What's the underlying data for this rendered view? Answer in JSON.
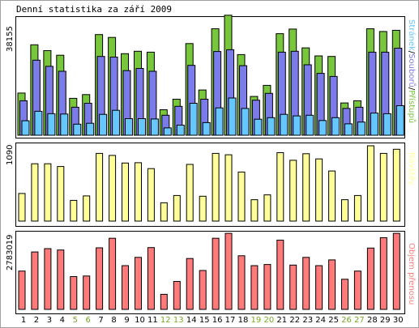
{
  "title": "Denní statistika za září 2009",
  "colors": {
    "hits": "#77c63b",
    "files": "#7b7bea",
    "pages": "#66c7ff",
    "visits": "#ffff99",
    "kbytes": "#ff7b7b",
    "weekday_label": "#000000",
    "weekend_label": "#77aa22",
    "border": "#000000"
  },
  "legend": {
    "pages": "Stránek",
    "sep1": "/",
    "files": "Souborů",
    "sep2": "/",
    "hits": "Přístupů",
    "visits": "Návštěv",
    "kbytes": "Objem přenosu"
  },
  "chart_data": [
    {
      "type": "bar",
      "name": "hits-files-pages",
      "ymax_label": "38155",
      "ylim": [
        0,
        38155
      ],
      "categories": [
        "1",
        "2",
        "3",
        "4",
        "5",
        "6",
        "7",
        "8",
        "9",
        "10",
        "11",
        "12",
        "13",
        "14",
        "15",
        "16",
        "17",
        "18",
        "19",
        "20",
        "21",
        "22",
        "23",
        "24",
        "25",
        "26",
        "27",
        "28",
        "29",
        "30"
      ],
      "weekend": [
        false,
        false,
        false,
        false,
        true,
        true,
        false,
        false,
        false,
        false,
        false,
        true,
        true,
        false,
        false,
        false,
        false,
        false,
        true,
        true,
        false,
        false,
        false,
        false,
        false,
        true,
        true,
        false,
        false,
        false
      ],
      "series": [
        {
          "key": "hits",
          "name": "Přístupů",
          "values": [
            13700,
            29400,
            27500,
            26000,
            12000,
            13200,
            32700,
            31800,
            26500,
            27300,
            27000,
            8300,
            11700,
            29800,
            14700,
            34600,
            39000,
            26200,
            12600,
            16200,
            33000,
            34500,
            28400,
            25800,
            25600,
            10500,
            11200,
            34600,
            33700,
            34100
          ]
        },
        {
          "key": "files",
          "name": "Souborů",
          "values": [
            11200,
            24400,
            22400,
            20800,
            9100,
            10400,
            25600,
            25400,
            21000,
            21700,
            20800,
            6500,
            9400,
            22700,
            11700,
            27200,
            27800,
            22600,
            11400,
            13600,
            27000,
            27300,
            22900,
            20100,
            19100,
            8700,
            9100,
            27000,
            27000,
            28300
          ]
        },
        {
          "key": "pages",
          "name": "Stránek",
          "values": [
            4700,
            7800,
            7000,
            6900,
            3600,
            3900,
            6800,
            8100,
            5400,
            5400,
            5300,
            2400,
            3300,
            10400,
            4100,
            8900,
            12100,
            8700,
            5200,
            5700,
            6800,
            6300,
            6500,
            4800,
            5700,
            3700,
            4300,
            7200,
            7000,
            9600
          ]
        }
      ]
    },
    {
      "type": "bar",
      "name": "visits",
      "ymax_label": "1090",
      "ylim": [
        0,
        1090
      ],
      "categories": [
        "1",
        "2",
        "3",
        "4",
        "5",
        "6",
        "7",
        "8",
        "9",
        "10",
        "11",
        "12",
        "13",
        "14",
        "15",
        "16",
        "17",
        "18",
        "19",
        "20",
        "21",
        "22",
        "23",
        "24",
        "25",
        "26",
        "27",
        "28",
        "29",
        "30"
      ],
      "series": [
        {
          "key": "visits",
          "name": "Návštěv",
          "values": [
            400,
            830,
            830,
            790,
            300,
            365,
            980,
            950,
            840,
            845,
            760,
            265,
            370,
            820,
            360,
            980,
            960,
            710,
            310,
            380,
            990,
            880,
            975,
            900,
            725,
            310,
            370,
            1090,
            980,
            1040
          ]
        }
      ]
    },
    {
      "type": "bar",
      "name": "kbytes",
      "ymax_label": "2783019",
      "ylim": [
        0,
        2783019
      ],
      "categories": [
        "1",
        "2",
        "3",
        "4",
        "5",
        "6",
        "7",
        "8",
        "9",
        "10",
        "11",
        "12",
        "13",
        "14",
        "15",
        "16",
        "17",
        "18",
        "19",
        "20",
        "21",
        "22",
        "23",
        "24",
        "25",
        "26",
        "27",
        "28",
        "29",
        "30"
      ],
      "series": [
        {
          "key": "kbytes",
          "name": "Objem přenosu",
          "values": [
            1400000,
            2100000,
            2220000,
            2170000,
            1200000,
            1220000,
            2250000,
            2600000,
            1600000,
            1900000,
            2260000,
            550000,
            1020000,
            1860000,
            1420000,
            2600000,
            2780000,
            1960000,
            1600000,
            1640000,
            2530000,
            1620000,
            1900000,
            1600000,
            1810000,
            1100000,
            1400000,
            2240000,
            2620000,
            2780000
          ]
        }
      ]
    }
  ]
}
